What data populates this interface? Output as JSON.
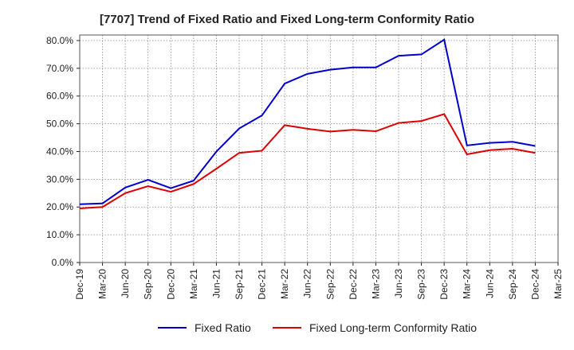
{
  "title": "[7707]  Trend of Fixed Ratio and Fixed Long-term Conformity Ratio",
  "chart_data": {
    "type": "line",
    "title": "[7707]  Trend of Fixed Ratio and Fixed Long-term Conformity Ratio",
    "categories": [
      "Dec-19",
      "Mar-20",
      "Jun-20",
      "Sep-20",
      "Dec-20",
      "Mar-21",
      "Jun-21",
      "Sep-21",
      "Dec-21",
      "Mar-22",
      "Jun-22",
      "Sep-22",
      "Dec-22",
      "Mar-23",
      "Jun-23",
      "Sep-23",
      "Dec-23",
      "Mar-24",
      "Jun-24",
      "Sep-24",
      "Dec-24",
      "Mar-25"
    ],
    "y_ticks": [
      "0.0%",
      "10.0%",
      "20.0%",
      "30.0%",
      "40.0%",
      "50.0%",
      "60.0%",
      "70.0%",
      "80.0%"
    ],
    "ylim": [
      0,
      82
    ],
    "grid": true,
    "legend_position": "bottom",
    "series": [
      {
        "name": "Fixed Ratio",
        "color": "#0000cc",
        "values": [
          21.0,
          21.3,
          27.0,
          29.8,
          26.8,
          29.5,
          40.0,
          48.3,
          53.0,
          64.5,
          68.0,
          69.5,
          70.3,
          70.3,
          74.5,
          75.0,
          80.3,
          42.2,
          43.1,
          43.5,
          42.0,
          null
        ]
      },
      {
        "name": "Fixed Long-term Conformity Ratio",
        "color": "#dd0000",
        "values": [
          19.5,
          20.0,
          25.0,
          27.5,
          25.5,
          28.3,
          33.8,
          39.5,
          40.3,
          49.5,
          48.2,
          47.2,
          47.8,
          47.3,
          50.3,
          51.0,
          53.5,
          39.0,
          40.5,
          41.0,
          39.5,
          null
        ]
      }
    ]
  }
}
